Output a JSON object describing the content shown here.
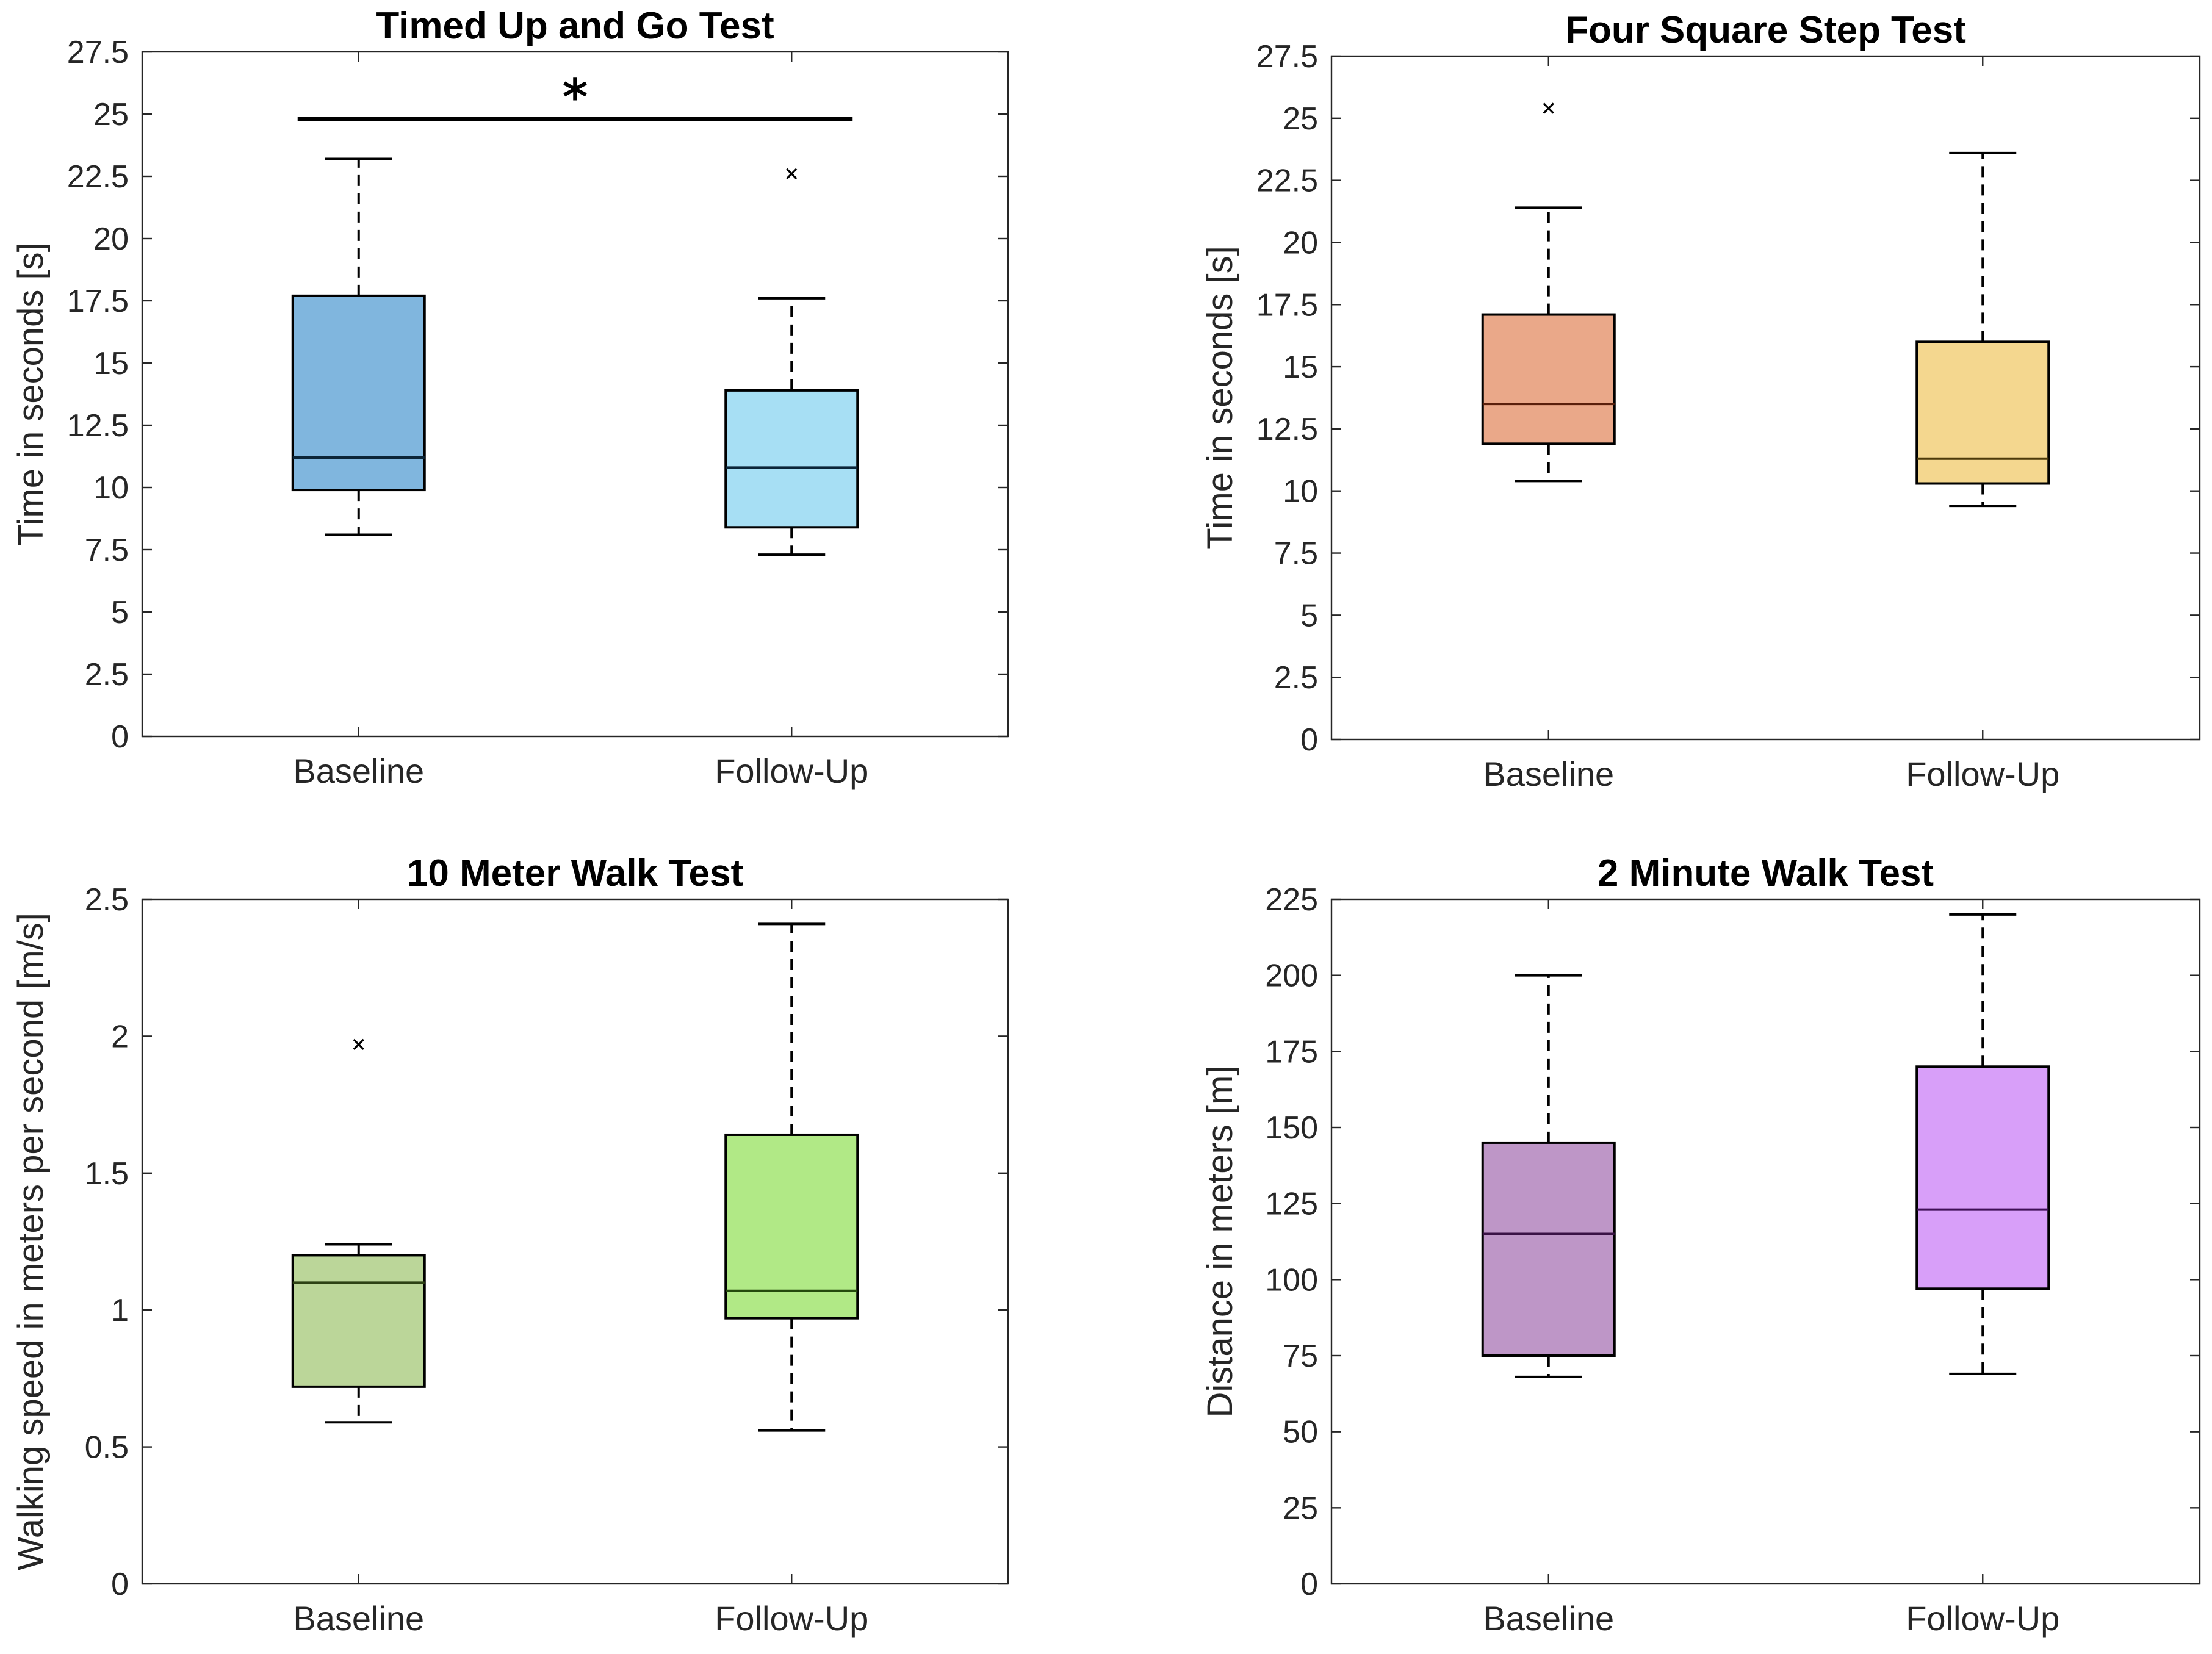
{
  "chart_data": [
    {
      "type": "box",
      "title": "Timed Up and Go Test",
      "xlabel": "",
      "ylabel": "Time in seconds [s]",
      "ylim": [
        0,
        27.5
      ],
      "ytick_labels": [
        "0",
        "2.5",
        "5",
        "7.5",
        "10",
        "12.5",
        "15",
        "17.5",
        "20",
        "22.5",
        "25",
        "27.5"
      ],
      "categories": [
        "Baseline",
        "Follow-Up"
      ],
      "boxes": [
        {
          "name": "Baseline",
          "min": 8.1,
          "q1": 9.9,
          "median": 11.2,
          "q3": 17.7,
          "max": 23.2,
          "outliers": [],
          "fill": "#80b6de",
          "stroke": "#0b2538"
        },
        {
          "name": "Follow-Up",
          "min": 7.3,
          "q1": 8.4,
          "median": 10.8,
          "q3": 13.9,
          "max": 17.6,
          "outliers": [
            22.6
          ],
          "fill": "#a7dff4",
          "stroke": "#0b2538"
        }
      ],
      "significance": {
        "from": "Baseline",
        "to": "Follow-Up",
        "value": 24.8,
        "marker": "*"
      }
    },
    {
      "type": "box",
      "title": "Four Square Step Test",
      "xlabel": "",
      "ylabel": "Time in seconds [s]",
      "ylim": [
        0,
        27.5
      ],
      "ytick_labels": [
        "0",
        "2.5",
        "5",
        "7.5",
        "10",
        "12.5",
        "15",
        "17.5",
        "20",
        "22.5",
        "25",
        "27.5"
      ],
      "categories": [
        "Baseline",
        "Follow-Up"
      ],
      "boxes": [
        {
          "name": "Baseline",
          "min": 10.4,
          "q1": 11.9,
          "median": 13.5,
          "q3": 17.1,
          "max": 21.4,
          "outliers": [
            25.4
          ],
          "fill": "#eaa889",
          "stroke": "#5a1f0b"
        },
        {
          "name": "Follow-Up",
          "min": 9.4,
          "q1": 10.3,
          "median": 11.3,
          "q3": 16.0,
          "max": 23.6,
          "outliers": [],
          "fill": "#f4d78f",
          "stroke": "#4d3a0a"
        }
      ]
    },
    {
      "type": "box",
      "title": "10 Meter Walk Test",
      "xlabel": "",
      "ylabel": "Walking speed in meters per second [m/s]",
      "ylim": [
        0,
        2.5
      ],
      "ytick_labels": [
        "0",
        "0.5",
        "1",
        "1.5",
        "2",
        "2.5"
      ],
      "categories": [
        "Baseline",
        "Follow-Up"
      ],
      "boxes": [
        {
          "name": "Baseline",
          "min": 0.59,
          "q1": 0.72,
          "median": 1.1,
          "q3": 1.2,
          "max": 1.24,
          "outliers": [
            1.97
          ],
          "fill": "#bbd699",
          "stroke": "#2d4214"
        },
        {
          "name": "Follow-Up",
          "min": 0.56,
          "q1": 0.97,
          "median": 1.07,
          "q3": 1.64,
          "max": 2.41,
          "outliers": [],
          "fill": "#b1e986",
          "stroke": "#244a0d"
        }
      ]
    },
    {
      "type": "box",
      "title": "2 Minute Walk Test",
      "xlabel": "",
      "ylabel": "Distance in meters [m]",
      "ylim": [
        0,
        225
      ],
      "ytick_labels": [
        "0",
        "25",
        "50",
        "75",
        "100",
        "125",
        "150",
        "175",
        "200",
        "225"
      ],
      "categories": [
        "Baseline",
        "Follow-Up"
      ],
      "boxes": [
        {
          "name": "Baseline",
          "min": 68,
          "q1": 75,
          "median": 115,
          "q3": 145,
          "max": 200,
          "outliers": [],
          "fill": "#be96c7",
          "stroke": "#3a1245"
        },
        {
          "name": "Follow-Up",
          "min": 69,
          "q1": 97,
          "median": 123,
          "q3": 170,
          "max": 220,
          "outliers": [],
          "fill": "#d89ff9",
          "stroke": "#3d0f55"
        }
      ]
    }
  ]
}
